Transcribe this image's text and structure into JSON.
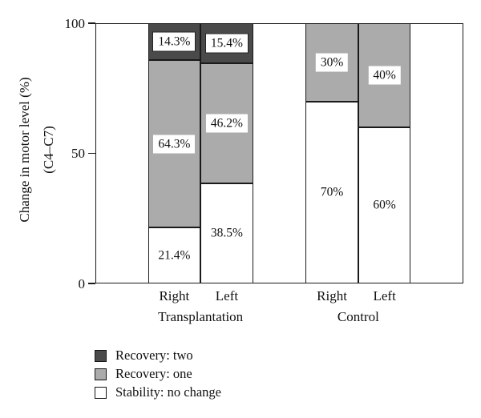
{
  "chart_data": {
    "type": "bar",
    "stacked": true,
    "ylabel": "Change in motor level (%)",
    "ylabel_sub": "(C4–C7)",
    "ylim": [
      0,
      100
    ],
    "yticks": [
      0,
      50,
      100
    ],
    "grid": false,
    "categories": [
      "Right",
      "Left",
      "Right",
      "Left"
    ],
    "groups": [
      {
        "label": "Transplantation",
        "bar_indexes": [
          0,
          1
        ]
      },
      {
        "label": "Control",
        "bar_indexes": [
          2,
          3
        ]
      }
    ],
    "series": [
      {
        "name": "Stability: no change",
        "color": "#ffffff",
        "values": [
          21.4,
          38.5,
          70,
          60
        ],
        "value_labels": [
          "21.4%",
          "38.5%",
          "70%",
          "60%"
        ]
      },
      {
        "name": "Recovery: one",
        "color": "#ababab",
        "values": [
          64.3,
          46.2,
          30,
          40
        ],
        "value_labels": [
          "64.3%",
          "46.2%",
          "30%",
          "40%"
        ]
      },
      {
        "name": "Recovery: two",
        "color": "#4a4a4a",
        "values": [
          14.3,
          15.4,
          0,
          0
        ],
        "value_labels": [
          "14.3%",
          "15.4%",
          "",
          ""
        ]
      }
    ],
    "legend": {
      "position": "bottom-left",
      "items": [
        {
          "label": "Recovery: two",
          "color": "#4a4a4a"
        },
        {
          "label": "Recovery: one",
          "color": "#ababab"
        },
        {
          "label": "Stability: no change",
          "color": "#ffffff"
        }
      ]
    }
  }
}
